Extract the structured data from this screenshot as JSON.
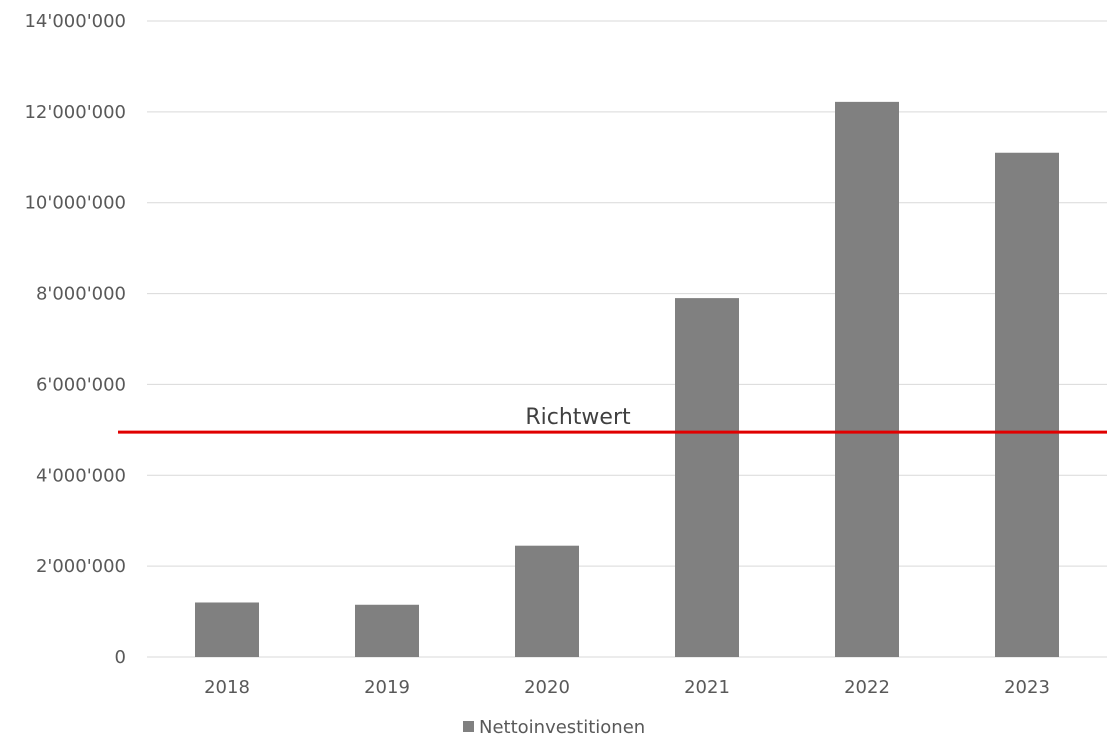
{
  "chart_data": {
    "type": "bar",
    "title": "",
    "xlabel": "",
    "ylabel": "",
    "categories": [
      "2018",
      "2019",
      "2020",
      "2021",
      "2022",
      "2023"
    ],
    "series": [
      {
        "name": "Nettoinvestitionen",
        "values": [
          1200000,
          1150000,
          2450000,
          7900000,
          12220000,
          11100000
        ],
        "color": "#808080"
      }
    ],
    "ylim": [
      0,
      14000000
    ],
    "yticks": [
      0,
      2000000,
      4000000,
      6000000,
      8000000,
      10000000,
      12000000,
      14000000
    ],
    "ytick_labels": [
      "0",
      "2'000'000",
      "4'000'000",
      "6'000'000",
      "8'000'000",
      "10'000'000",
      "12'000'000",
      "14'000'000"
    ],
    "grid": true,
    "legend_position": "bottom-center",
    "reference_line": {
      "label": "Richtwert",
      "value": 4950000,
      "color": "#e00000"
    },
    "colors": {
      "grid": "#d9d9d9",
      "axis": "#d9d9d9"
    }
  }
}
